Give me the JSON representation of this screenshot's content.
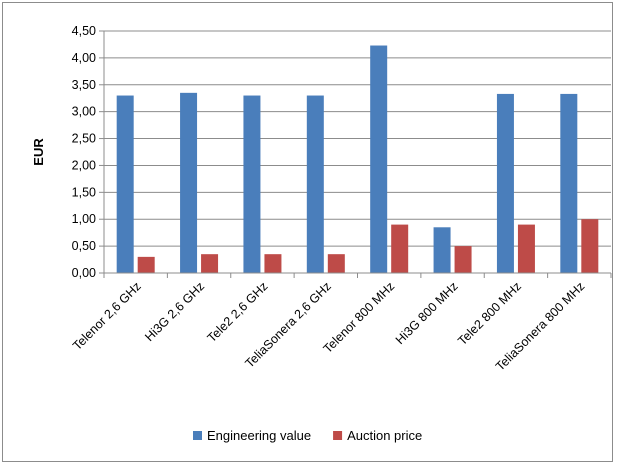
{
  "chart_data": {
    "type": "bar",
    "title": "",
    "xlabel": "",
    "ylabel": "EUR",
    "ylim": [
      0,
      4.5
    ],
    "ytick_step": 0.5,
    "ytick_labels": [
      "0,00",
      "0,50",
      "1,00",
      "1,50",
      "2,00",
      "2,50",
      "3,00",
      "3,50",
      "4,00",
      "4,50"
    ],
    "grid": true,
    "legend_position": "bottom",
    "categories": [
      "Telenor 2,6 GHz",
      "Hi3G 2,6 GHz",
      "Tele2 2,6 GHz",
      "TeliaSonera 2,6 GHz",
      "Telenor 800 MHz",
      "Hi3G 800 MHz",
      "Tele2 800 MHz",
      "TeliaSonera 800 MHz"
    ],
    "series": [
      {
        "name": "Engineering value",
        "color": "#4a7ebb",
        "values": [
          3.3,
          3.35,
          3.3,
          3.3,
          4.23,
          0.85,
          3.33,
          3.33
        ]
      },
      {
        "name": "Auction price",
        "color": "#be4b48",
        "values": [
          0.3,
          0.35,
          0.35,
          0.35,
          0.9,
          0.5,
          0.9,
          1.0
        ]
      }
    ]
  }
}
